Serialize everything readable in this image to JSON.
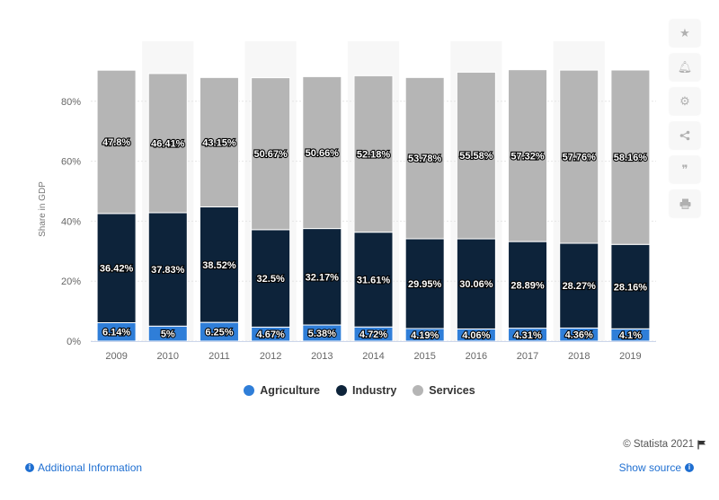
{
  "chart_data": {
    "type": "bar",
    "stacked": true,
    "categories": [
      "2009",
      "2010",
      "2011",
      "2012",
      "2013",
      "2014",
      "2015",
      "2016",
      "2017",
      "2018",
      "2019"
    ],
    "series": [
      {
        "name": "Agriculture",
        "color": "#2f7ed8",
        "values": [
          6.14,
          5,
          6.25,
          4.67,
          5.38,
          4.72,
          4.19,
          4.06,
          4.31,
          4.36,
          4.1
        ],
        "labels": [
          "6.14%",
          "5%",
          "6.25%",
          "4.67%",
          "5.38%",
          "4.72%",
          "4.19%",
          "4.06%",
          "4.31%",
          "4.36%",
          "4.1%"
        ]
      },
      {
        "name": "Industry",
        "color": "#0d233a",
        "values": [
          36.42,
          37.83,
          38.52,
          32.5,
          32.17,
          31.61,
          29.95,
          30.06,
          28.89,
          28.27,
          28.16
        ],
        "labels": [
          "36.42%",
          "37.83%",
          "38.52%",
          "32.5%",
          "32.17%",
          "31.61%",
          "29.95%",
          "30.06%",
          "28.89%",
          "28.27%",
          "28.16%"
        ]
      },
      {
        "name": "Services",
        "color": "#b5b5b5",
        "values": [
          47.8,
          46.41,
          43.15,
          50.67,
          50.66,
          52.18,
          53.78,
          55.58,
          57.32,
          57.76,
          58.16
        ],
        "labels": [
          "47.8%",
          "46.41%",
          "43.15%",
          "50.67%",
          "50.66%",
          "52.18%",
          "53.78%",
          "55.58%",
          "57.32%",
          "57.76%",
          "58.16%"
        ]
      }
    ],
    "ylabel": "Share in GDP",
    "xlabel": "",
    "ylim": [
      0,
      100
    ],
    "yticks": [
      0,
      20,
      40,
      60,
      80
    ],
    "ytick_labels": [
      "0%",
      "20%",
      "40%",
      "60%",
      "80%"
    ],
    "legend_position": "bottom",
    "grid": true
  },
  "legend": {
    "items": [
      {
        "label": "Agriculture",
        "color": "#2f7ed8"
      },
      {
        "label": "Industry",
        "color": "#0d233a"
      },
      {
        "label": "Services",
        "color": "#b5b5b5"
      }
    ]
  },
  "toolbar": {
    "icons": [
      "star-icon",
      "bell-icon",
      "gear-icon",
      "share-icon",
      "quote-icon",
      "print-icon"
    ]
  },
  "footer": {
    "copyright": "© Statista 2021",
    "additional_info": "Additional Information",
    "show_source": "Show source"
  }
}
